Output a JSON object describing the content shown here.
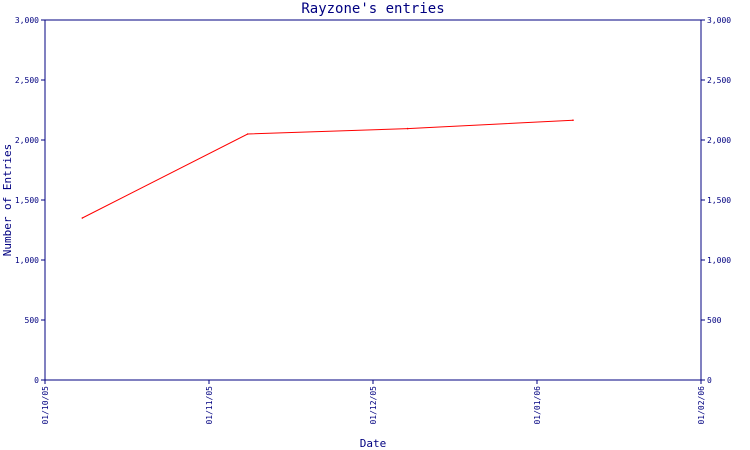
{
  "chart_data": {
    "type": "line",
    "title": "Rayzone's entries",
    "xlabel": "Date",
    "ylabel": "Number of Entries",
    "x_ticks": [
      "01/10/05",
      "01/11/05",
      "01/12/05",
      "01/01/06",
      "01/02/06"
    ],
    "y_ticks": [
      "0",
      "500",
      "1,000",
      "1,500",
      "2,000",
      "2,500",
      "3,000"
    ],
    "ylim": [
      0,
      3000
    ],
    "xlim": [
      "2005-10-01",
      "2006-02-01"
    ],
    "grid": false,
    "series": [
      {
        "color": "#ff0000",
        "points": [
          {
            "x": "2005-10-08",
            "y": 1350
          },
          {
            "x": "2005-11-08",
            "y": 2050
          },
          {
            "x": "2005-12-08",
            "y": 2095
          },
          {
            "x": "2006-01-08",
            "y": 2165
          }
        ]
      }
    ],
    "colors": {
      "axis": "#000080",
      "line": "#ff0000"
    }
  }
}
